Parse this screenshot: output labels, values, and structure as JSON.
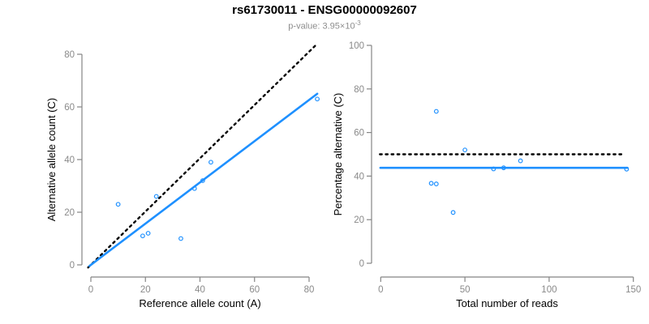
{
  "header": {
    "title": "rs61730011 - ENSG00000092607",
    "subtitle_base": "p-value: 3.95×10",
    "subtitle_exponent": "-3"
  },
  "colors": {
    "accent_blue": "#1E90FF",
    "identity_black": "#000000",
    "axis_gray": "#858585",
    "tick_label_gray": "#8a8a8a",
    "subtitle_gray": "#8e8e8e"
  },
  "chart_data": [
    {
      "name": "allele-counts",
      "type": "scatter",
      "xlabel": "Reference allele count (A)",
      "ylabel": "Alternative allele count (C)",
      "xlim": [
        0,
        83
      ],
      "ylim": [
        0,
        83
      ],
      "xticks": [
        0,
        20,
        40,
        60,
        80
      ],
      "yticks": [
        0,
        20,
        40,
        60,
        80
      ],
      "grid": false,
      "legend": "none",
      "points": [
        [
          10,
          23
        ],
        [
          19,
          11
        ],
        [
          21,
          12
        ],
        [
          24,
          26
        ],
        [
          33,
          10
        ],
        [
          38,
          29
        ],
        [
          41,
          32
        ],
        [
          44,
          39
        ],
        [
          83,
          63
        ]
      ],
      "lines": [
        {
          "name": "identity-line",
          "style": "dotted",
          "color": "#000000",
          "x1": -1,
          "y1": -1,
          "x2": 82.5,
          "y2": 83.5
        },
        {
          "name": "fit-line",
          "style": "solid",
          "color": "#1E90FF",
          "x1": -0.5,
          "y1": -0.4,
          "x2": 83,
          "y2": 65
        }
      ]
    },
    {
      "name": "percentage-alternative",
      "type": "scatter",
      "xlabel": "Total number of reads",
      "ylabel": "Percentage alternative (C)",
      "xlim": [
        0,
        150
      ],
      "ylim": [
        0,
        100
      ],
      "xticks": [
        0,
        50,
        100,
        150
      ],
      "yticks": [
        0,
        20,
        40,
        60,
        80,
        100
      ],
      "grid": false,
      "legend": "none",
      "points": [
        [
          33,
          69.7
        ],
        [
          30,
          36.7
        ],
        [
          33,
          36.4
        ],
        [
          50,
          52
        ],
        [
          43,
          23.3
        ],
        [
          67,
          43.3
        ],
        [
          73,
          43.8
        ],
        [
          83,
          47
        ],
        [
          146,
          43.2
        ]
      ],
      "lines": [
        {
          "name": "expected-line",
          "style": "dotted",
          "color": "#000000",
          "x1": -0.5,
          "y1": 50,
          "x2": 144.5,
          "y2": 50
        },
        {
          "name": "mean-line",
          "style": "solid",
          "color": "#1E90FF",
          "x1": -0.2,
          "y1": 43.8,
          "x2": 146.5,
          "y2": 43.8
        }
      ]
    }
  ]
}
